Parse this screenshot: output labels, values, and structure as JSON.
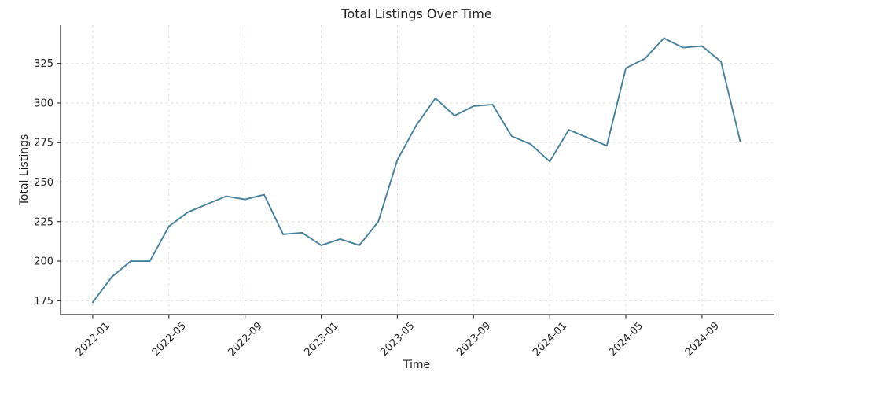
{
  "chart_data": {
    "type": "line",
    "title": "Total Listings Over Time",
    "xlabel": "Time",
    "ylabel": "Total Listings",
    "x": [
      "2022-01",
      "2022-02",
      "2022-03",
      "2022-04",
      "2022-05",
      "2022-06",
      "2022-07",
      "2022-08",
      "2022-09",
      "2022-10",
      "2022-11",
      "2022-12",
      "2023-01",
      "2023-02",
      "2023-03",
      "2023-04",
      "2023-05",
      "2023-06",
      "2023-07",
      "2023-08",
      "2023-09",
      "2023-10",
      "2023-11",
      "2023-12",
      "2024-01",
      "2024-02",
      "2024-03",
      "2024-04",
      "2024-05",
      "2024-06",
      "2024-07",
      "2024-08",
      "2024-09",
      "2024-10",
      "2024-11"
    ],
    "series": [
      {
        "name": "Total Listings",
        "values": [
          174,
          190,
          200,
          200,
          222,
          231,
          236,
          241,
          239,
          242,
          217,
          218,
          210,
          214,
          210,
          225,
          264,
          286,
          303,
          292,
          298,
          299,
          279,
          274,
          263,
          283,
          278,
          273,
          322,
          328,
          341,
          335,
          336,
          326,
          276
        ]
      }
    ],
    "x_tick_indices": [
      0,
      4,
      8,
      12,
      16,
      20,
      24,
      28,
      32
    ],
    "x_tick_labels": [
      "2022-01",
      "2022-05",
      "2022-09",
      "2023-01",
      "2023-05",
      "2023-09",
      "2024-01",
      "2024-05",
      "2024-09"
    ],
    "y_ticks": [
      175,
      200,
      225,
      250,
      275,
      300,
      325
    ],
    "ylim": [
      166.2,
      349.2
    ],
    "xlim_index": [
      -1.69,
      35.72
    ],
    "grid": true,
    "legend": "none",
    "line_color": "#46809b",
    "grid_color": "#d8d8d8",
    "axis_color": "#262626",
    "tick_label_color": "#262626",
    "background": "#ffffff"
  }
}
